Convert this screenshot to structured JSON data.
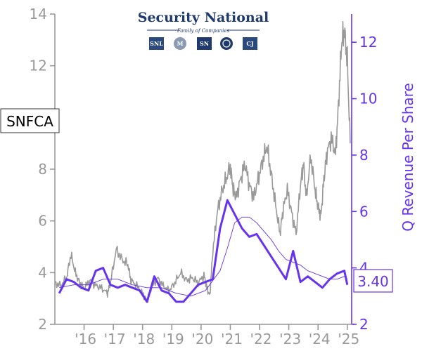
{
  "ticker": "SNFCA",
  "logo": {
    "title": "Security National",
    "subtitle": "Family of Companies",
    "marks": [
      "SNL",
      "M",
      "SN",
      "",
      "CJ"
    ]
  },
  "colors": {
    "price": "#999999",
    "revenue": "#6633ee",
    "left_axis": "#999999",
    "right_axis": "#6633ee",
    "logo": "#1e3a6e"
  },
  "chart_data": {
    "type": "line",
    "title": "",
    "xlabel": "",
    "x_tick_labels": [
      "'16",
      "'17",
      "'18",
      "'19",
      "'20",
      "'21",
      "'22",
      "'23",
      "'24",
      "'25"
    ],
    "x_ticks": [
      2016,
      2017,
      2018,
      2019,
      2020,
      2021,
      2022,
      2023,
      2024,
      2025
    ],
    "xlim": [
      2015.0,
      2025.15
    ],
    "left_axis": {
      "label": "",
      "ylim": [
        2,
        14
      ],
      "ticks": [
        2,
        4,
        6,
        8,
        12,
        14
      ]
    },
    "right_axis": {
      "label": "Q Revenue Per Share",
      "ylim": [
        2,
        13
      ],
      "ticks": [
        2,
        4,
        6,
        8,
        10,
        12
      ]
    },
    "last_value_label": "3.40",
    "series": [
      {
        "role": "stock_price",
        "axis": "left",
        "x": [
          2015.0,
          2015.2,
          2015.4,
          2015.55,
          2015.7,
          2015.85,
          2016.0,
          2016.2,
          2016.4,
          2016.6,
          2016.8,
          2016.9,
          2017.1,
          2017.3,
          2017.5,
          2017.6,
          2017.8,
          2018.0,
          2018.15,
          2018.3,
          2018.5,
          2018.7,
          2018.9,
          2019.1,
          2019.3,
          2019.5,
          2019.7,
          2019.9,
          2020.1,
          2020.2,
          2020.3,
          2020.4,
          2020.55,
          2020.7,
          2020.85,
          2021.0,
          2021.1,
          2021.2,
          2021.35,
          2021.5,
          2021.65,
          2021.8,
          2021.95,
          2022.1,
          2022.25,
          2022.4,
          2022.55,
          2022.7,
          2022.8,
          2022.95,
          2023.1,
          2023.25,
          2023.4,
          2023.5,
          2023.6,
          2023.75,
          2023.9,
          2024.0,
          2024.1,
          2024.2,
          2024.3,
          2024.45,
          2024.6,
          2024.7,
          2024.8,
          2024.9,
          2025.0,
          2025.1
        ],
        "y": [
          3.6,
          3.5,
          3.8,
          4.7,
          4.0,
          3.6,
          3.4,
          3.7,
          3.5,
          3.4,
          3.2,
          3.6,
          4.9,
          4.5,
          4.3,
          3.7,
          3.5,
          3.2,
          2.9,
          3.4,
          3.8,
          3.5,
          3.3,
          3.6,
          4.0,
          3.7,
          3.8,
          3.6,
          3.9,
          3.4,
          3.1,
          4.8,
          6.3,
          7.1,
          7.6,
          8.1,
          7.2,
          6.9,
          7.6,
          8.2,
          7.4,
          6.9,
          7.6,
          8.3,
          8.9,
          7.8,
          6.6,
          5.5,
          6.4,
          7.2,
          6.3,
          5.5,
          7.4,
          8.2,
          6.9,
          8.5,
          7.2,
          6.5,
          6.2,
          7.6,
          8.6,
          9.2,
          8.6,
          10.5,
          12.8,
          13.4,
          12.2,
          9.0
        ]
      },
      {
        "role": "revenue_per_share",
        "axis": "right",
        "x": [
          2015.15,
          2015.4,
          2015.65,
          2015.9,
          2016.15,
          2016.4,
          2016.65,
          2016.9,
          2017.15,
          2017.4,
          2017.65,
          2017.9,
          2018.15,
          2018.4,
          2018.65,
          2018.9,
          2019.15,
          2019.4,
          2019.65,
          2019.9,
          2020.15,
          2020.4,
          2020.65,
          2020.9,
          2021.15,
          2021.4,
          2021.65,
          2021.9,
          2022.15,
          2022.4,
          2022.65,
          2022.9,
          2023.15,
          2023.4,
          2023.65,
          2023.9,
          2024.15,
          2024.4,
          2024.65,
          2024.9,
          2025.0
        ],
        "y": [
          3.1,
          3.6,
          3.5,
          3.3,
          3.2,
          3.9,
          4.0,
          3.4,
          3.3,
          3.4,
          3.3,
          3.2,
          2.8,
          3.7,
          3.2,
          3.1,
          2.8,
          2.8,
          3.1,
          3.4,
          3.5,
          3.6,
          5.4,
          6.4,
          5.9,
          5.4,
          5.1,
          5.2,
          4.8,
          4.4,
          4.0,
          3.6,
          4.6,
          3.5,
          3.7,
          3.5,
          3.3,
          3.6,
          3.8,
          3.9,
          3.4
        ]
      },
      {
        "role": "revenue_moving_average",
        "axis": "right",
        "x": [
          2015.15,
          2015.65,
          2016.15,
          2016.65,
          2017.15,
          2017.65,
          2018.15,
          2018.65,
          2019.15,
          2019.65,
          2020.15,
          2020.65,
          2020.9,
          2021.15,
          2021.4,
          2021.65,
          2021.9,
          2022.15,
          2022.4,
          2022.65,
          2022.9,
          2023.15,
          2023.4,
          2023.65,
          2023.9,
          2024.15,
          2024.4,
          2024.65,
          2024.9,
          2025.0
        ],
        "y": [
          3.3,
          3.4,
          3.4,
          3.6,
          3.6,
          3.4,
          3.3,
          3.3,
          3.1,
          3.0,
          3.2,
          3.9,
          4.7,
          5.6,
          5.8,
          5.8,
          5.6,
          5.3,
          5.0,
          4.6,
          4.3,
          4.2,
          4.1,
          3.9,
          3.8,
          3.7,
          3.6,
          3.6,
          3.7,
          3.6
        ]
      }
    ]
  }
}
